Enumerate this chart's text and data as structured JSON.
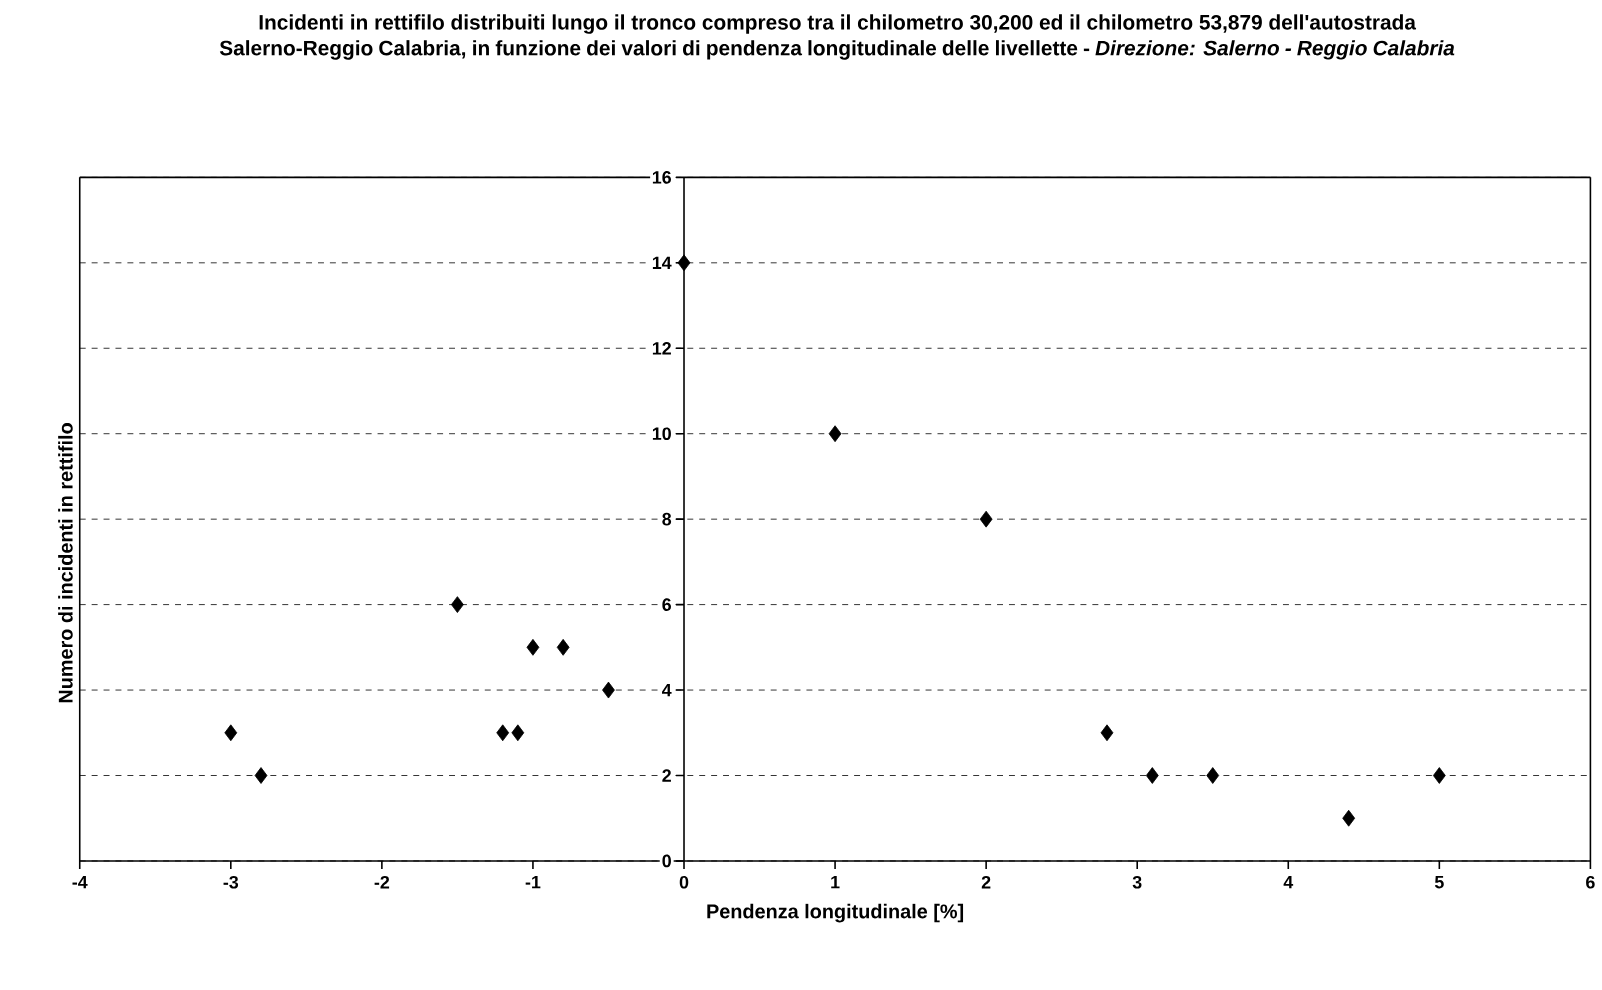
{
  "chart_data": {
    "type": "scatter",
    "title": "Incidenti in rettifilo distribuiti lungo il tronco compreso tra il chilometro 30,200 ed il chilometro 53,879 dell'autostrada Salerno-Reggio Calabria, in funzione dei valori di pendenza longitudinale delle livellette - *Direzione: Salerno - Reggio Calabria*",
    "xlabel": "Pendenza longitudinale [%]",
    "ylabel": "Numero di incidenti in rettifilo",
    "x": [
      -3,
      -2.8,
      -1.5,
      -1.2,
      -1.1,
      -1,
      -0.8,
      -0.5,
      0,
      1,
      2,
      2.8,
      3.1,
      3.5,
      4.4,
      5
    ],
    "values": [
      3,
      2,
      6,
      3,
      3,
      5,
      5,
      4,
      14,
      10,
      8,
      3,
      2,
      2,
      1,
      2
    ],
    "color": "#000000",
    "marker": "diamond",
    "grid": "y",
    "xlim": [
      -4,
      6
    ],
    "xticks": [
      -4,
      -3,
      -2,
      -1,
      0,
      1,
      2,
      3,
      4,
      5,
      6
    ],
    "ylim": [
      0,
      16
    ],
    "yticks": [
      0,
      2,
      4,
      6,
      8,
      10,
      12,
      14,
      16
    ]
  }
}
